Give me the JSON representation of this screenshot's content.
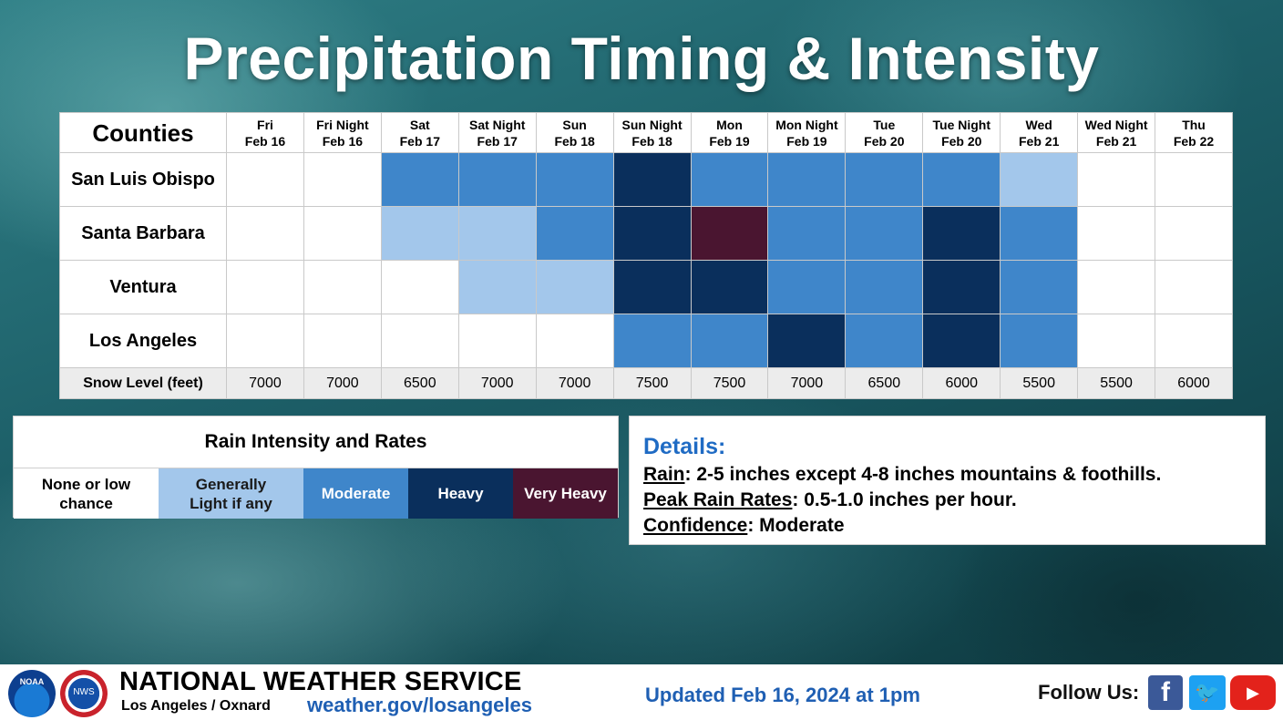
{
  "title": "Precipitation Timing & Intensity",
  "colors": {
    "none": "#ffffff",
    "light": "#a3c7eb",
    "moderate": "#3f86ca",
    "heavy": "#0a2f5c",
    "very_heavy": "#4a1530"
  },
  "chart_data": {
    "type": "heatmap",
    "title": "Precipitation Timing & Intensity",
    "row_header": "Counties",
    "columns": [
      {
        "day": "Fri",
        "date": "Feb 16"
      },
      {
        "day": "Fri Night",
        "date": "Feb 16"
      },
      {
        "day": "Sat",
        "date": "Feb 17"
      },
      {
        "day": "Sat Night",
        "date": "Feb 17"
      },
      {
        "day": "Sun",
        "date": "Feb 18"
      },
      {
        "day": "Sun Night",
        "date": "Feb 18"
      },
      {
        "day": "Mon",
        "date": "Feb 19"
      },
      {
        "day": "Mon Night",
        "date": "Feb 19"
      },
      {
        "day": "Tue",
        "date": "Feb 20"
      },
      {
        "day": "Tue Night",
        "date": "Feb 20"
      },
      {
        "day": "Wed",
        "date": "Feb 21"
      },
      {
        "day": "Wed Night",
        "date": "Feb 21"
      },
      {
        "day": "Thu",
        "date": "Feb 22"
      }
    ],
    "levels": [
      "none",
      "light",
      "moderate",
      "heavy",
      "very_heavy"
    ],
    "rows": [
      {
        "county": "San Luis Obispo",
        "values": [
          "none",
          "none",
          "moderate",
          "moderate",
          "moderate",
          "heavy",
          "moderate",
          "moderate",
          "moderate",
          "moderate",
          "light",
          "none",
          "none"
        ]
      },
      {
        "county": "Santa Barbara",
        "values": [
          "none",
          "none",
          "light",
          "light",
          "moderate",
          "heavy",
          "very_heavy",
          "moderate",
          "moderate",
          "heavy",
          "moderate",
          "none",
          "none"
        ]
      },
      {
        "county": "Ventura",
        "values": [
          "none",
          "none",
          "none",
          "light",
          "light",
          "heavy",
          "heavy",
          "moderate",
          "moderate",
          "heavy",
          "moderate",
          "none",
          "none"
        ]
      },
      {
        "county": "Los Angeles",
        "values": [
          "none",
          "none",
          "none",
          "none",
          "none",
          "moderate",
          "moderate",
          "heavy",
          "moderate",
          "heavy",
          "moderate",
          "none",
          "none"
        ]
      }
    ],
    "snow_level": {
      "label": "Snow Level (feet)",
      "values": [
        7000,
        7000,
        6500,
        7000,
        7000,
        7500,
        7500,
        7000,
        6500,
        6000,
        5500,
        5500,
        6000
      ]
    }
  },
  "legend": {
    "title": "Rain Intensity and Rates",
    "items": [
      {
        "label": "None or low chance",
        "level": "none",
        "text_color": "#000000"
      },
      {
        "label": "Generally Light if any",
        "level": "light",
        "text_color": "#1a1a1a"
      },
      {
        "label": "Moderate",
        "level": "moderate",
        "text_color": "#ffffff"
      },
      {
        "label": "Heavy",
        "level": "heavy",
        "text_color": "#ffffff"
      },
      {
        "label": "Very Heavy",
        "level": "very_heavy",
        "text_color": "#ffffff"
      }
    ]
  },
  "details": {
    "heading": "Details:",
    "lines": [
      {
        "key": "Rain",
        "value": ": 2-5 inches except 4-8 inches mountains & foothills."
      },
      {
        "key": "Peak Rain Rates",
        "value": ": 0.5-1.0 inches per hour."
      },
      {
        "key": "Confidence",
        "value": ": Moderate"
      }
    ]
  },
  "footer": {
    "noaa_logo_text": "NOAA",
    "nws_logo_text": "NWS",
    "agency": "NATIONAL WEATHER SERVICE",
    "office": "Los Angeles / Oxnard",
    "url": "weather.gov/losangeles",
    "updated": "Updated Feb 16, 2024 at 1pm",
    "follow": "Follow Us:",
    "social": [
      {
        "name": "facebook",
        "icon": "facebook-icon",
        "glyph": "f"
      },
      {
        "name": "twitter",
        "icon": "twitter-icon",
        "glyph": "🐦"
      },
      {
        "name": "youtube",
        "icon": "youtube-icon",
        "glyph": "▶"
      }
    ]
  }
}
